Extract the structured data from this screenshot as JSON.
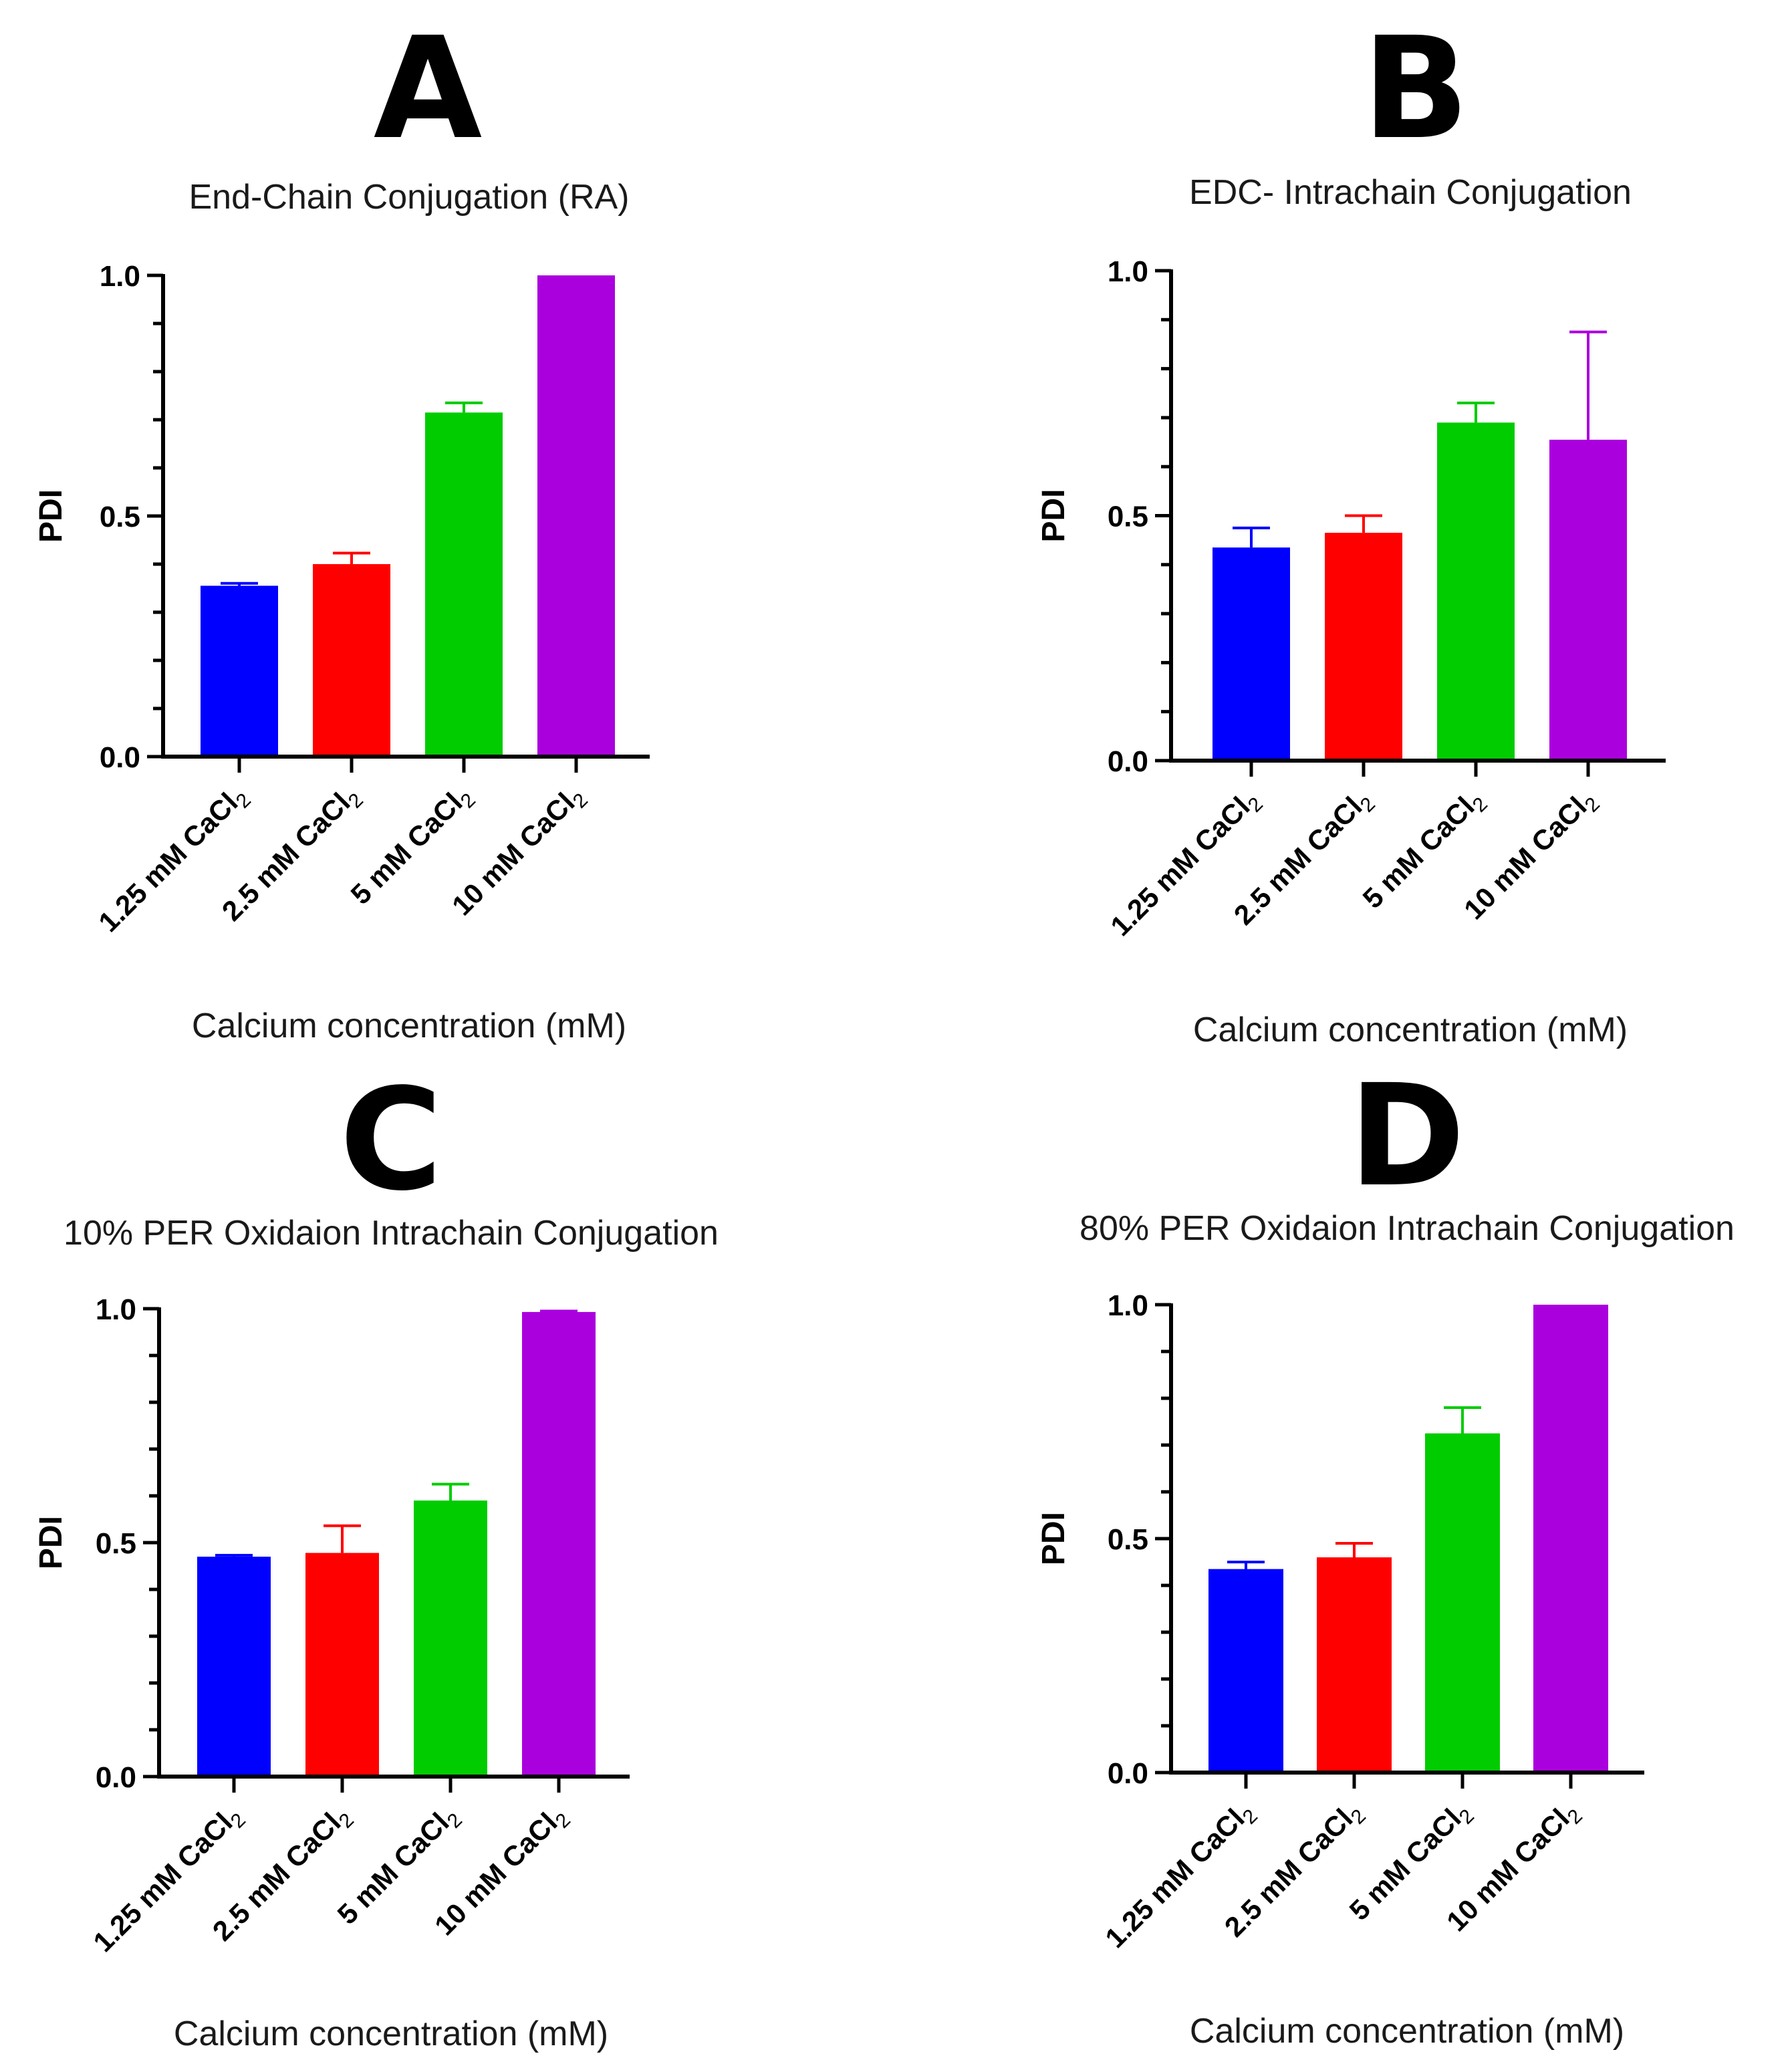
{
  "chart_data": [
    {
      "panel": "A",
      "type": "bar",
      "title": "End-Chain Conjugation (RA)",
      "xlabel": "Calcium concentration (mM)",
      "ylabel": "PDI",
      "ylim": [
        0,
        1.0
      ],
      "yticks": [
        "0.0",
        "0.5",
        "1.0"
      ],
      "categories": [
        {
          "prefix": "1.25 mM CaCl",
          "sub": "2"
        },
        {
          "prefix": "2.5 mM CaCl",
          "sub": "2"
        },
        {
          "prefix": "5 mM CaCl",
          "sub": "2"
        },
        {
          "prefix": "10 mM CaCl",
          "sub": "2"
        }
      ],
      "values": [
        0.355,
        0.4,
        0.715,
        1.0
      ],
      "errors": [
        0.005,
        0.023,
        0.02,
        0.0
      ],
      "colors": [
        "#0000ff",
        "#ff0000",
        "#00cc00",
        "#aa00dd"
      ]
    },
    {
      "panel": "B",
      "type": "bar",
      "title": "EDC- Intrachain Conjugation",
      "xlabel": "Calcium concentration (mM)",
      "ylabel": "PDI",
      "ylim": [
        0,
        1.0
      ],
      "yticks": [
        "0.0",
        "0.5",
        "1.0"
      ],
      "categories": [
        {
          "prefix": "1.25 mM CaCl",
          "sub": "2"
        },
        {
          "prefix": "2.5 mM CaCl",
          "sub": "2"
        },
        {
          "prefix": "5 mM CaCl",
          "sub": "2"
        },
        {
          "prefix": "10 mM CaCl",
          "sub": "2"
        }
      ],
      "values": [
        0.435,
        0.465,
        0.69,
        0.655
      ],
      "errors": [
        0.04,
        0.035,
        0.04,
        0.22
      ],
      "colors": [
        "#0000ff",
        "#ff0000",
        "#00cc00",
        "#aa00dd"
      ]
    },
    {
      "panel": "C",
      "type": "bar",
      "title": "10% PER Oxidaion Intrachain Conjugation",
      "xlabel": "Calcium concentration (mM)",
      "ylabel": "PDI",
      "ylim": [
        0,
        1.0
      ],
      "yticks": [
        "0.0",
        "0.5",
        "1.0"
      ],
      "categories": [
        {
          "prefix": "1.25 mM CaCl",
          "sub": "2"
        },
        {
          "prefix": "2.5 mM CaCl",
          "sub": "2"
        },
        {
          "prefix": "5 mM CaCl",
          "sub": "2"
        },
        {
          "prefix": "10 mM CaCl",
          "sub": "2"
        }
      ],
      "values": [
        0.47,
        0.478,
        0.59,
        0.993
      ],
      "errors": [
        0.003,
        0.058,
        0.035,
        0.002
      ],
      "colors": [
        "#0000ff",
        "#ff0000",
        "#00cc00",
        "#aa00dd"
      ]
    },
    {
      "panel": "D",
      "type": "bar",
      "title": "80% PER Oxidaion Intrachain Conjugation",
      "xlabel": "Calcium concentration (mM)",
      "ylabel": "PDI",
      "ylim": [
        0,
        1.0
      ],
      "yticks": [
        "0.0",
        "0.5",
        "1.0"
      ],
      "categories": [
        {
          "prefix": "1.25 mM CaCl",
          "sub": "2"
        },
        {
          "prefix": "2.5 mM CaCl",
          "sub": "2"
        },
        {
          "prefix": "5 mM CaCl",
          "sub": "2"
        },
        {
          "prefix": "10 mM CaCl",
          "sub": "2"
        }
      ],
      "values": [
        0.435,
        0.46,
        0.725,
        1.0
      ],
      "errors": [
        0.015,
        0.03,
        0.055,
        0.0
      ],
      "colors": [
        "#0000ff",
        "#ff0000",
        "#00cc00",
        "#aa00dd"
      ]
    }
  ]
}
